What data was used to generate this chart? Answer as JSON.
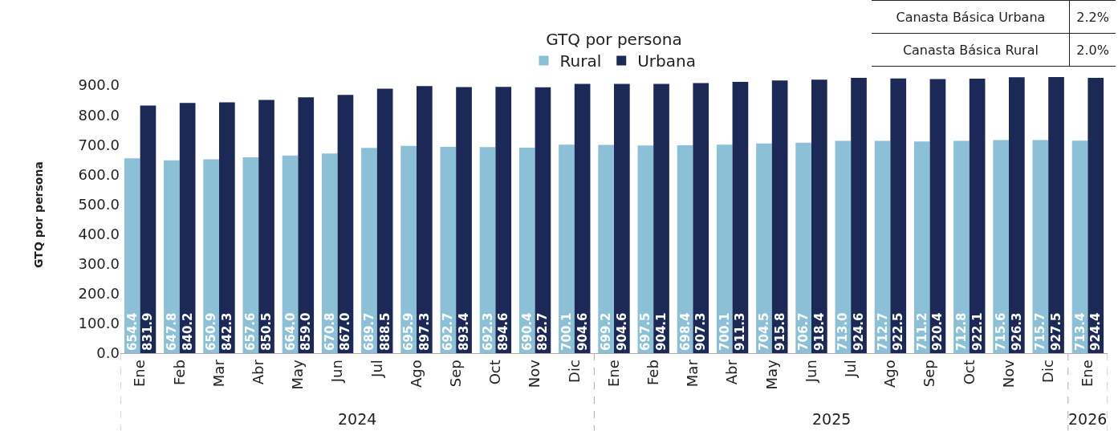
{
  "chart_data": {
    "type": "bar",
    "ylabel": "GTQ por persona",
    "legend_title": "GTQ por persona",
    "legend": "top",
    "categories": [
      "Ene",
      "Feb",
      "Mar",
      "Abr",
      "May",
      "Jun",
      "Jul",
      "Ago",
      "Sep",
      "Oct",
      "Nov",
      "Dic",
      "Ene",
      "Feb",
      "Mar",
      "Abr",
      "May",
      "Jun",
      "Jul",
      "Ago",
      "Sep",
      "Oct",
      "Nov",
      "Dic",
      "Ene"
    ],
    "series": [
      {
        "name": "Rural",
        "color": "#8bc0d6",
        "values": [
          654.4,
          647.8,
          650.9,
          657.6,
          664.0,
          670.8,
          689.7,
          695.9,
          692.7,
          692.3,
          690.4,
          700.1,
          699.2,
          697.5,
          698.4,
          700.1,
          704.5,
          706.7,
          713.0,
          712.7,
          711.2,
          712.8,
          715.6,
          715.7,
          713.4
        ],
        "value_labels": [
          "654.4",
          "647.8",
          "650.9",
          "657.6",
          "664.0",
          "670.8",
          "689.7",
          "695.9",
          "692.7",
          "692.3",
          "690.4",
          "700.1",
          "699.2",
          "697.5",
          "698.4",
          "700.1",
          "704.5",
          "706.7",
          "713.0",
          "712.7",
          "711.2",
          "712.8",
          "715.6",
          "715.7",
          "713.4"
        ]
      },
      {
        "name": "Urbana",
        "color": "#1c2957",
        "values": [
          831.9,
          840.2,
          842.3,
          850.5,
          859.0,
          867.0,
          888.5,
          897.3,
          893.4,
          894.6,
          892.7,
          904.6,
          904.6,
          904.1,
          907.3,
          911.3,
          915.8,
          918.4,
          924.6,
          922.5,
          920.4,
          922.1,
          926.3,
          927.5,
          924.4
        ],
        "value_labels": [
          "831.9",
          "840.2",
          "842.3",
          "850.5",
          "859.0",
          "867.0",
          "888.5",
          "897.3",
          "893.4",
          "894.6",
          "892.7",
          "904.6",
          "904.6",
          "904.1",
          "907.3",
          "911.3",
          "915.8",
          "918.4",
          "924.6",
          "922.5",
          "920.4",
          "922.1",
          "926.3",
          "927.5",
          "924.4"
        ]
      }
    ],
    "ylim": [
      0,
      930
    ],
    "yticks": [
      {
        "value": 0,
        "label": "0.0"
      },
      {
        "value": 100,
        "label": "100.0"
      },
      {
        "value": 200,
        "label": "200.0"
      },
      {
        "value": 300,
        "label": "300.0"
      },
      {
        "value": 400,
        "label": "400.0"
      },
      {
        "value": 500,
        "label": "500.0"
      },
      {
        "value": 600,
        "label": "600.0"
      },
      {
        "value": 700,
        "label": "700.0"
      },
      {
        "value": 800,
        "label": "800.0"
      },
      {
        "value": 900,
        "label": "900.0"
      }
    ],
    "grid": false,
    "annotations": [
      "2024",
      "2025",
      "2026",
      "Canasta Básica Urbana",
      "2.2%",
      "Canasta Básica Rural",
      "2.0%"
    ]
  }
}
